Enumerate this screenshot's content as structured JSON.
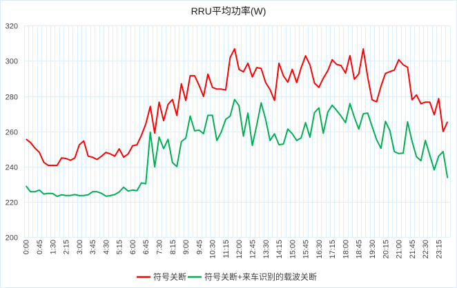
{
  "chart_data": {
    "type": "line",
    "title": "RRU平均功率(W)",
    "xlabel": "",
    "ylabel": "",
    "ylim": [
      200,
      320
    ],
    "y_ticks": [
      200,
      220,
      240,
      260,
      280,
      300,
      320
    ],
    "grid": true,
    "legend_position": "bottom",
    "x_tick_labels": [
      "0:00",
      "0:45",
      "1:30",
      "2:15",
      "3:00",
      "3:45",
      "4:30",
      "5:15",
      "6:00",
      "6:45",
      "7:30",
      "8:15",
      "9:00",
      "9:45",
      "10:30",
      "11:15",
      "12:00",
      "12:45",
      "13:30",
      "14:15",
      "15:00",
      "15:45",
      "16:30",
      "17:15",
      "18:00",
      "18:45",
      "19:30",
      "20:15",
      "21:00",
      "21:45",
      "22:30",
      "23:15"
    ],
    "series": [
      {
        "name": "符号关断",
        "color": "#FF0000",
        "values": [
          255.6,
          253.7,
          250.5,
          248.1,
          242.4,
          240.7,
          240.7,
          240.7,
          244.9,
          244.6,
          243.6,
          244.9,
          252.3,
          254.6,
          245.9,
          245.3,
          244.0,
          245.9,
          248.1,
          247.2,
          245.9,
          250.1,
          245.3,
          247.1,
          251.8,
          252.4,
          257.7,
          264.2,
          274.2,
          259.0,
          276.6,
          266.1,
          275.3,
          278.1,
          269.0,
          287.0,
          277.5,
          291.6,
          291.6,
          286.1,
          279.8,
          292.5,
          285.0,
          284.0,
          284.0,
          283.5,
          302.0,
          306.8,
          295.2,
          293.8,
          298.7,
          290.9,
          296.2,
          295.7,
          287.7,
          283.7,
          277.6,
          298.7,
          291.6,
          287.9,
          295.2,
          287.7,
          296.1,
          302.9,
          297.7,
          287.4,
          285.0,
          290.2,
          294.4,
          300.7,
          298.0,
          297.4,
          293.1,
          303.0,
          289.6,
          292.6,
          306.8,
          290.9,
          277.9,
          276.8,
          285.7,
          292.9,
          293.9,
          294.8,
          300.7,
          297.8,
          296.4,
          277.9,
          280.7,
          275.7,
          276.6,
          276.6,
          269.4,
          278.6,
          259.9,
          265.5
        ]
      },
      {
        "name": "符号关断+来车识别的载波关断",
        "color": "#00B050",
        "values": [
          229.0,
          225.7,
          225.7,
          226.7,
          224.4,
          224.8,
          224.7,
          223.1,
          224.0,
          223.6,
          223.6,
          224.1,
          223.5,
          223.6,
          224.0,
          225.7,
          225.7,
          224.8,
          223.2,
          223.5,
          224.1,
          225.6,
          228.3,
          226.1,
          226.7,
          226.3,
          230.7,
          230.3,
          259.6,
          239.8,
          256.8,
          250.2,
          255.5,
          242.3,
          240.0,
          254.2,
          256.1,
          268.7,
          260.3,
          260.7,
          258.7,
          269.1,
          269.1,
          254.8,
          259.6,
          266.8,
          268.7,
          278.1,
          274.6,
          257.3,
          270.4,
          252.0,
          263.5,
          276.2,
          266.8,
          254.8,
          258.6,
          252.4,
          252.8,
          261.3,
          258.7,
          254.8,
          256.3,
          265.0,
          256.7,
          270.6,
          273.3,
          258.9,
          270.9,
          274.9,
          271.9,
          268.7,
          265.0,
          275.8,
          268.0,
          261.3,
          270.0,
          270.4,
          262.8,
          255.3,
          250.4,
          265.7,
          260.5,
          248.5,
          247.4,
          247.6,
          265.4,
          254.3,
          245.6,
          243.3,
          254.8,
          246.5,
          238.1,
          245.9,
          248.5,
          233.5
        ]
      }
    ]
  }
}
